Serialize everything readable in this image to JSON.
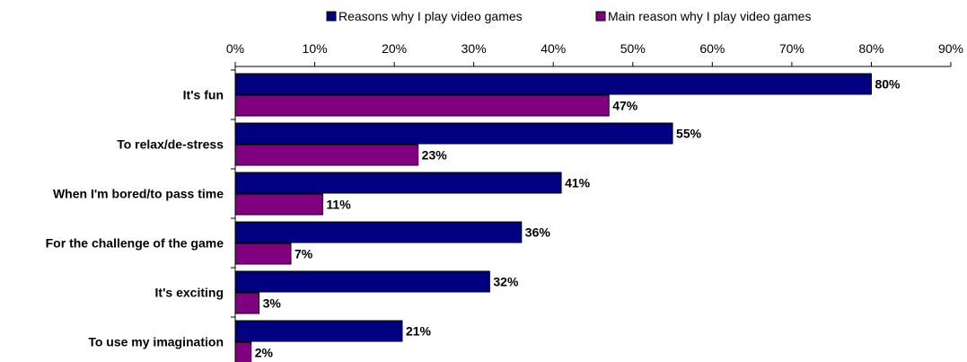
{
  "chart_data": {
    "type": "bar",
    "orientation": "horizontal",
    "categories": [
      "It's fun",
      "To relax/de-stress",
      "When I'm bored/to pass time",
      "For the challenge of the game",
      "It's exciting",
      "To use my imagination"
    ],
    "series": [
      {
        "name": "Reasons why I play video games",
        "color": "#000080",
        "values": [
          80,
          55,
          41,
          36,
          32,
          21
        ],
        "labels": [
          "80%",
          "55%",
          "41%",
          "36%",
          "32%",
          "21%"
        ]
      },
      {
        "name": "Main reason why I play video games",
        "color": "#800080",
        "values": [
          47,
          23,
          11,
          7,
          3,
          2
        ],
        "labels": [
          "47%",
          "23%",
          "11%",
          "7%",
          "3%",
          "2%"
        ]
      }
    ],
    "xlim": [
      0,
      90
    ],
    "x_ticks": [
      0,
      10,
      20,
      30,
      40,
      50,
      60,
      70,
      80,
      90
    ],
    "x_tick_labels": [
      "0%",
      "10%",
      "20%",
      "30%",
      "40%",
      "50%",
      "60%",
      "70%",
      "80%",
      "90%"
    ],
    "x_axis_position": "top",
    "grid": false,
    "legend_position": "top"
  }
}
